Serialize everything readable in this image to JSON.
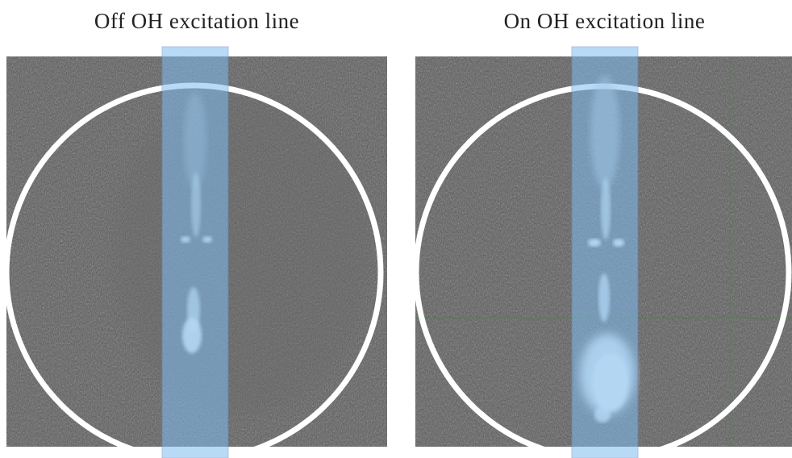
{
  "panels": [
    {
      "title": "Off OH excitation line",
      "variant": "off"
    },
    {
      "title": "On OH excitation line",
      "variant": "on"
    }
  ],
  "colors": {
    "background": "#ffffff",
    "image_gray": "#5a5a5a",
    "circle_stroke": "#ffffff",
    "highlight_strip": "#8fc4f0",
    "crosshair": "#3c8c3c"
  }
}
